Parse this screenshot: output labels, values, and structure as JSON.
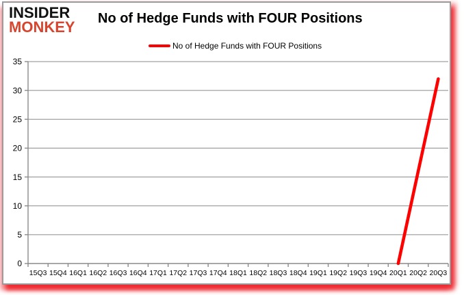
{
  "logo": {
    "line1": "INSIDER",
    "line2": "MONKEY",
    "line1_color": "#111111",
    "line2_color": "#d6452e"
  },
  "header": {
    "title": "No of Hedge Funds with FOUR Positions"
  },
  "legend": {
    "label": "No of Hedge Funds with FOUR Positions",
    "swatch_color": "#ff0000"
  },
  "chart_data": {
    "type": "line",
    "title": "No of Hedge Funds with FOUR Positions",
    "xlabel": "",
    "ylabel": "",
    "categories": [
      "15Q3",
      "15Q4",
      "16Q1",
      "16Q2",
      "16Q3",
      "16Q4",
      "17Q1",
      "17Q2",
      "17Q3",
      "17Q4",
      "18Q1",
      "18Q2",
      "18Q3",
      "18Q4",
      "19Q1",
      "19Q2",
      "19Q3",
      "19Q4",
      "20Q1",
      "20Q2",
      "20Q3"
    ],
    "series": [
      {
        "name": "No of Hedge Funds with FOUR Positions",
        "values": [
          null,
          null,
          null,
          null,
          null,
          null,
          null,
          null,
          null,
          null,
          null,
          null,
          null,
          null,
          null,
          null,
          null,
          null,
          0,
          16,
          32
        ],
        "color": "#ff0000"
      }
    ],
    "ylim": [
      0,
      35
    ],
    "yticks": [
      0,
      5,
      10,
      15,
      20,
      25,
      30,
      35
    ],
    "grid": true,
    "legend_position": "top",
    "gridline_color": "#8a8a8a",
    "axis_color": "#8a8a8a",
    "tick_label_color": "#000000"
  }
}
